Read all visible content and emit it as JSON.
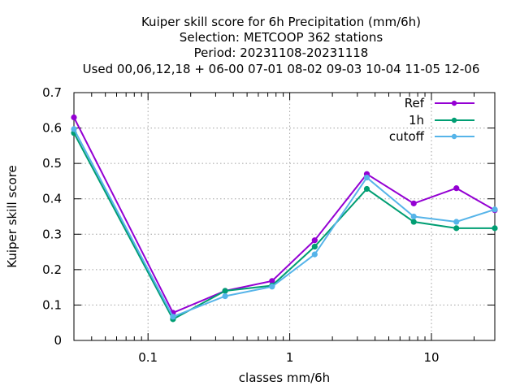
{
  "chart_data": {
    "type": "line",
    "title_lines": [
      "Kuiper skill score  for 6h Precipitation (mm/6h)",
      "Selection: METCOOP    362 stations",
      "Period: 20231108-20231118",
      "Used  00,06,12,18 + 06-00 07-01 08-02 09-03 10-04 11-05 12-06"
    ],
    "xlabel": "classes mm/6h",
    "ylabel": "Kuiper skill score",
    "xscale": "log",
    "xlim": [
      0.03,
      28
    ],
    "ylim": [
      0,
      0.7
    ],
    "x_ticks": [
      {
        "value": 0.1,
        "label": "0.1"
      },
      {
        "value": 1,
        "label": "1"
      },
      {
        "value": 10,
        "label": "10"
      }
    ],
    "y_ticks": [
      {
        "value": 0,
        "label": "0"
      },
      {
        "value": 0.1,
        "label": "0.1"
      },
      {
        "value": 0.2,
        "label": "0.2"
      },
      {
        "value": 0.3,
        "label": "0.3"
      },
      {
        "value": 0.4,
        "label": "0.4"
      },
      {
        "value": 0.5,
        "label": "0.5"
      },
      {
        "value": 0.6,
        "label": "0.6"
      },
      {
        "value": 0.7,
        "label": "0.7"
      }
    ],
    "grid": true,
    "legend_position": "top-right",
    "x": [
      0.03,
      0.15,
      0.35,
      0.75,
      1.5,
      3.5,
      7.5,
      15,
      28
    ],
    "series": [
      {
        "name": "Ref",
        "color": "#9400d3",
        "values": [
          0.63,
          0.078,
          0.14,
          0.168,
          0.283,
          0.47,
          0.387,
          0.43,
          0.368
        ]
      },
      {
        "name": "1h",
        "color": "#009e73",
        "values": [
          0.586,
          0.06,
          0.14,
          0.155,
          0.265,
          0.428,
          0.335,
          0.317,
          0.317
        ]
      },
      {
        "name": "cutoff",
        "color": "#56b4e9",
        "values": [
          0.597,
          0.067,
          0.125,
          0.152,
          0.243,
          0.46,
          0.35,
          0.335,
          0.37
        ]
      }
    ]
  }
}
